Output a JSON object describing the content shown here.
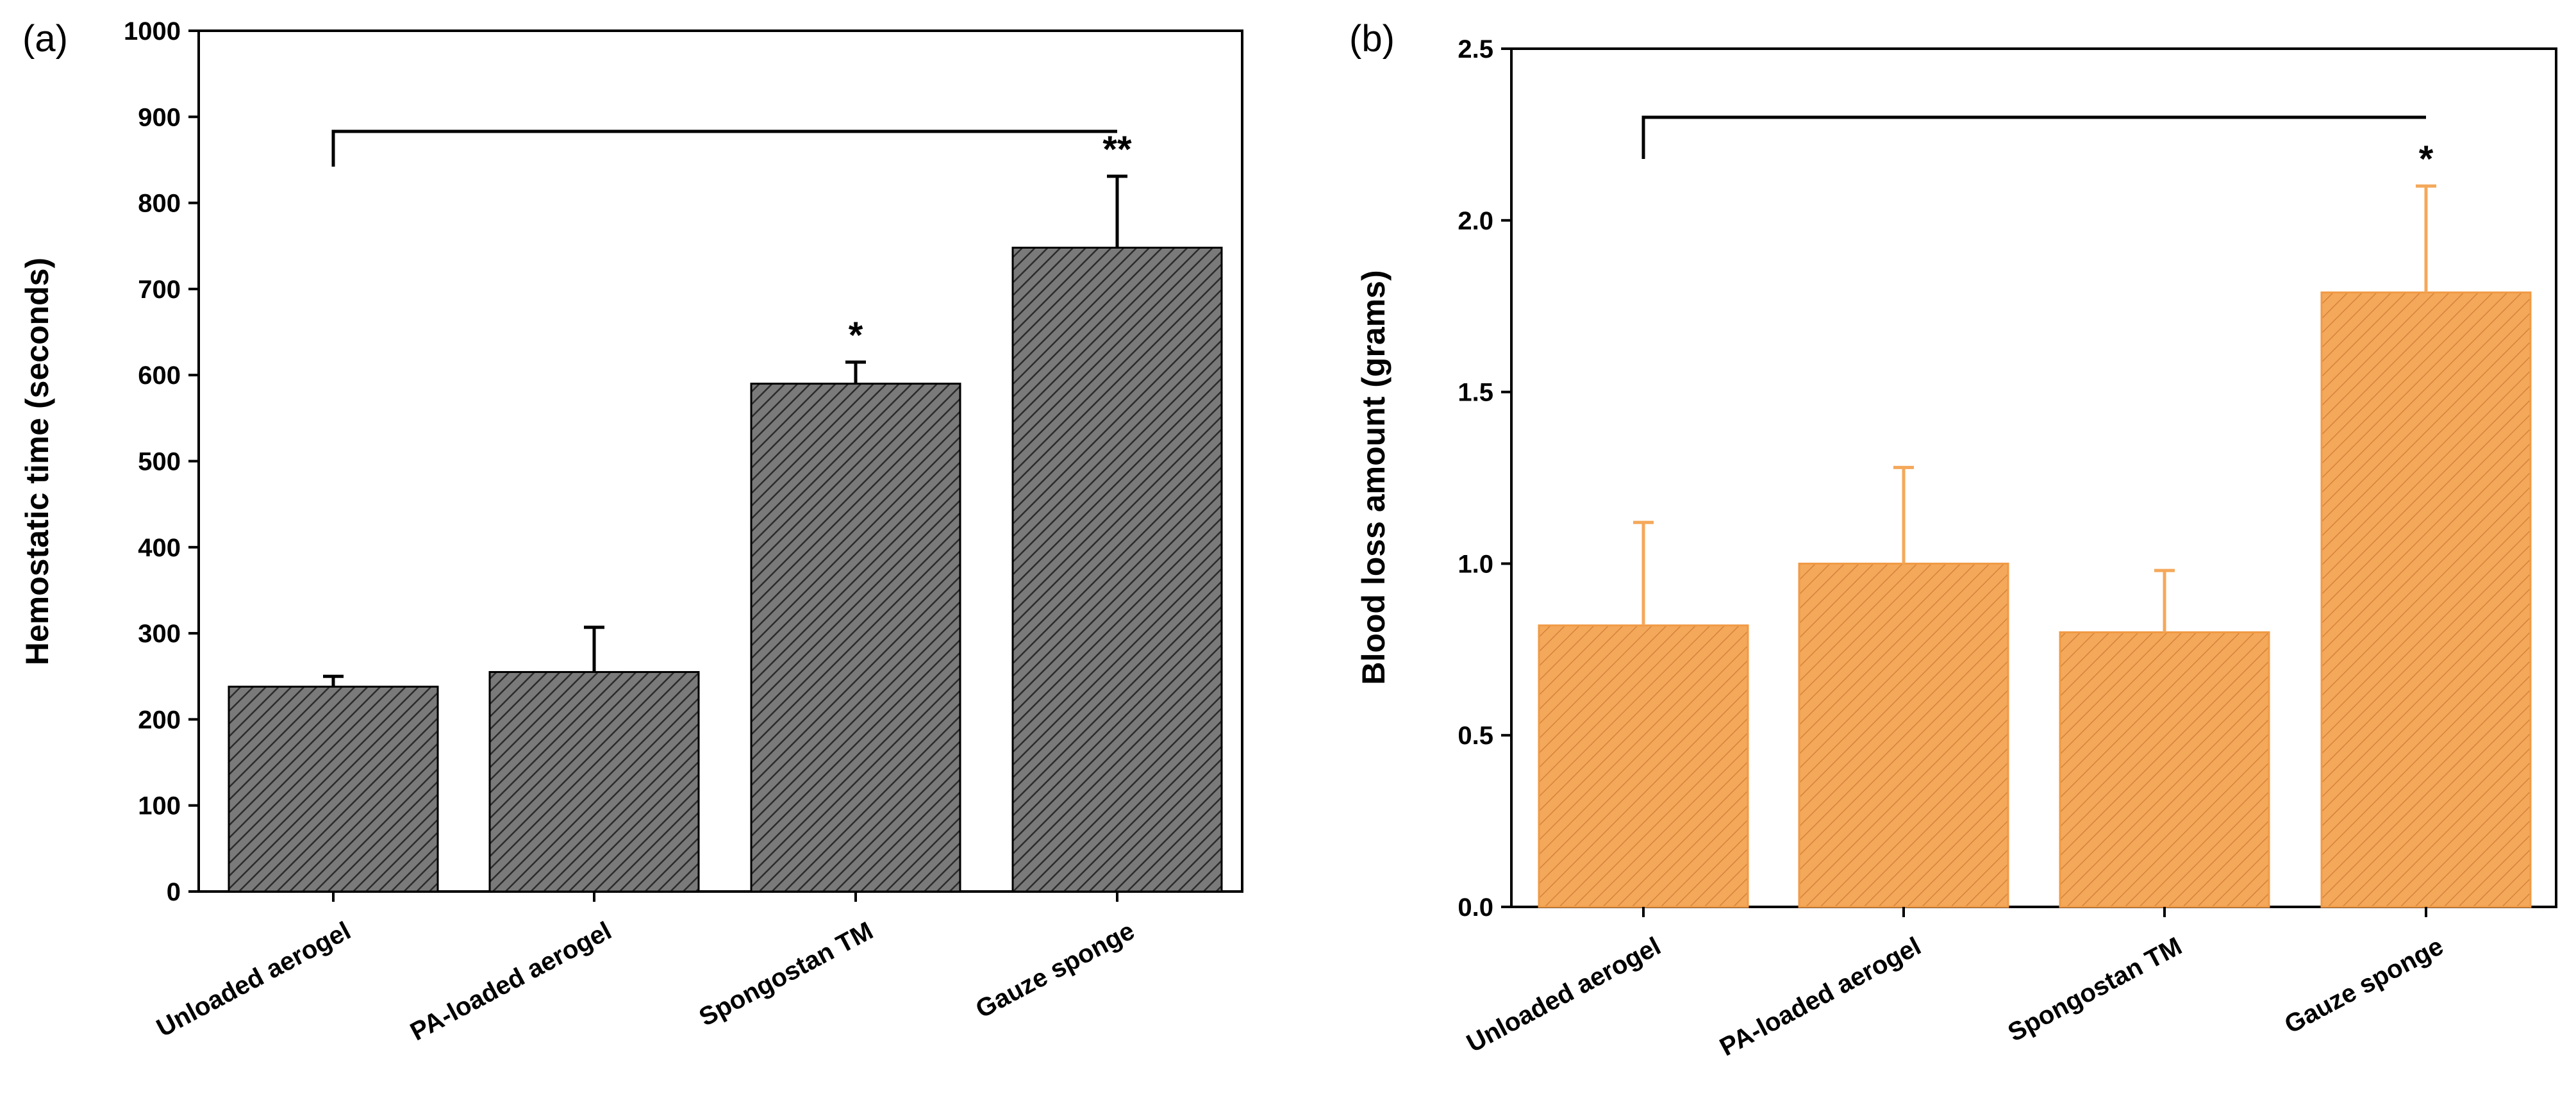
{
  "chart_data": [
    {
      "panel_label": "(a)",
      "type": "bar",
      "title": "",
      "xlabel": "",
      "ylabel": "Hemostatic time (seconds)",
      "categories": [
        "Unloaded aerogel",
        "PA-loaded aerogel",
        "Spongostan TM",
        "Gauze sponge"
      ],
      "values": [
        238,
        255,
        590,
        748
      ],
      "errors": [
        12,
        52,
        25,
        83
      ],
      "significance": [
        "",
        "",
        "*",
        "**"
      ],
      "comparison_bracket": {
        "from": 0,
        "to": 3
      },
      "ylim": [
        0,
        1000
      ],
      "yticks": [
        0,
        100,
        200,
        300,
        400,
        500,
        600,
        700,
        800,
        900,
        1000
      ],
      "bar_color": "#7a7a7a",
      "hatch_color": "#2b2b2b",
      "error_color": "#000000",
      "grid": false
    },
    {
      "panel_label": "(b)",
      "type": "bar",
      "title": "",
      "xlabel": "",
      "ylabel": "Blood loss amount (grams)",
      "categories": [
        "Unloaded aerogel",
        "PA-loaded aerogel",
        "Spongostan TM",
        "Gauze sponge"
      ],
      "values": [
        0.82,
        1.0,
        0.8,
        1.79
      ],
      "errors": [
        0.3,
        0.28,
        0.18,
        0.31
      ],
      "significance": [
        "",
        "",
        "",
        "*"
      ],
      "comparison_bracket": {
        "from": 0,
        "to": 3
      },
      "ylim": [
        0,
        2.5
      ],
      "yticks": [
        "0.0",
        "0.5",
        "1.0",
        "1.5",
        "2.0",
        "2.5"
      ],
      "bar_color": "#f4a85a",
      "hatch_color": "#d6833b",
      "error_color": "#f4a85a",
      "grid": false
    }
  ]
}
